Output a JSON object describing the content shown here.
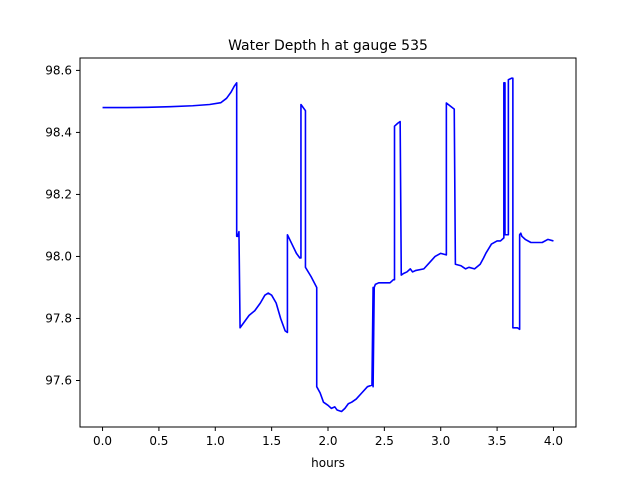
{
  "chart_data": {
    "type": "line",
    "title": "Water Depth h at gauge 535",
    "xlabel": "hours",
    "ylabel": "",
    "xlim": [
      -0.2,
      4.2
    ],
    "ylim": [
      97.45,
      98.64
    ],
    "xticks": [
      0.0,
      0.5,
      1.0,
      1.5,
      2.0,
      2.5,
      3.0,
      3.5,
      4.0
    ],
    "xtick_labels": [
      "0.0",
      "0.5",
      "1.0",
      "1.5",
      "2.0",
      "2.5",
      "3.0",
      "3.5",
      "4.0"
    ],
    "yticks": [
      97.6,
      97.8,
      98.0,
      98.2,
      98.4,
      98.6
    ],
    "ytick_labels": [
      "97.6",
      "97.8",
      "98.0",
      "98.2",
      "98.4",
      "98.6"
    ],
    "grid": false,
    "legend": "none",
    "color": "#0000ff",
    "series": [
      {
        "x": [
          0.0,
          0.2,
          0.4,
          0.6,
          0.8,
          0.95,
          1.05,
          1.1,
          1.14,
          1.17,
          1.19,
          1.19,
          1.2,
          1.21,
          1.22,
          1.25,
          1.3,
          1.35,
          1.4,
          1.44,
          1.47,
          1.5,
          1.54,
          1.58,
          1.62,
          1.64,
          1.64,
          1.68,
          1.72,
          1.75,
          1.76,
          1.76,
          1.8,
          1.8,
          1.85,
          1.9,
          1.9,
          1.93,
          1.96,
          2.0,
          2.03,
          2.06,
          2.08,
          2.12,
          2.15,
          2.18,
          2.21,
          2.25,
          2.3,
          2.35,
          2.39,
          2.4,
          2.4,
          2.41,
          2.41,
          2.42,
          2.45,
          2.5,
          2.55,
          2.58,
          2.59,
          2.59,
          2.62,
          2.64,
          2.65,
          2.67,
          2.7,
          2.73,
          2.75,
          2.78,
          2.85,
          2.9,
          2.95,
          3.0,
          3.05,
          3.05,
          3.12,
          3.13,
          3.18,
          3.2,
          3.22,
          3.25,
          3.3,
          3.35,
          3.38,
          3.4,
          3.45,
          3.5,
          3.53,
          3.56,
          3.56,
          3.57,
          3.57,
          3.6,
          3.6,
          3.63,
          3.64,
          3.64,
          3.66,
          3.68,
          3.7,
          3.7,
          3.71,
          3.72,
          3.75,
          3.8,
          3.85,
          3.9,
          3.95,
          4.0
        ],
        "y": [
          98.48,
          98.48,
          98.481,
          98.483,
          98.486,
          98.49,
          98.496,
          98.51,
          98.53,
          98.55,
          98.56,
          98.065,
          98.065,
          98.08,
          97.77,
          97.785,
          97.81,
          97.825,
          97.85,
          97.875,
          97.882,
          97.875,
          97.85,
          97.8,
          97.76,
          97.755,
          98.07,
          98.04,
          98.01,
          97.995,
          97.995,
          98.49,
          98.47,
          97.965,
          97.935,
          97.9,
          97.58,
          97.56,
          97.53,
          97.52,
          97.51,
          97.515,
          97.505,
          97.5,
          97.51,
          97.525,
          97.53,
          97.54,
          97.56,
          97.58,
          97.585,
          97.9,
          97.58,
          97.9,
          97.9,
          97.91,
          97.915,
          97.915,
          97.915,
          97.925,
          97.925,
          98.42,
          98.43,
          98.435,
          97.94,
          97.945,
          97.95,
          97.96,
          97.95,
          97.955,
          97.96,
          97.98,
          98.0,
          98.01,
          98.005,
          98.495,
          98.475,
          97.975,
          97.97,
          97.965,
          97.96,
          97.965,
          97.96,
          97.975,
          97.995,
          98.01,
          98.04,
          98.05,
          98.05,
          98.06,
          98.56,
          98.56,
          98.07,
          98.07,
          98.57,
          98.575,
          98.575,
          97.77,
          97.77,
          97.77,
          97.765,
          98.07,
          98.075,
          98.065,
          98.055,
          98.045,
          98.045,
          98.045,
          98.055,
          98.05
        ]
      }
    ]
  }
}
